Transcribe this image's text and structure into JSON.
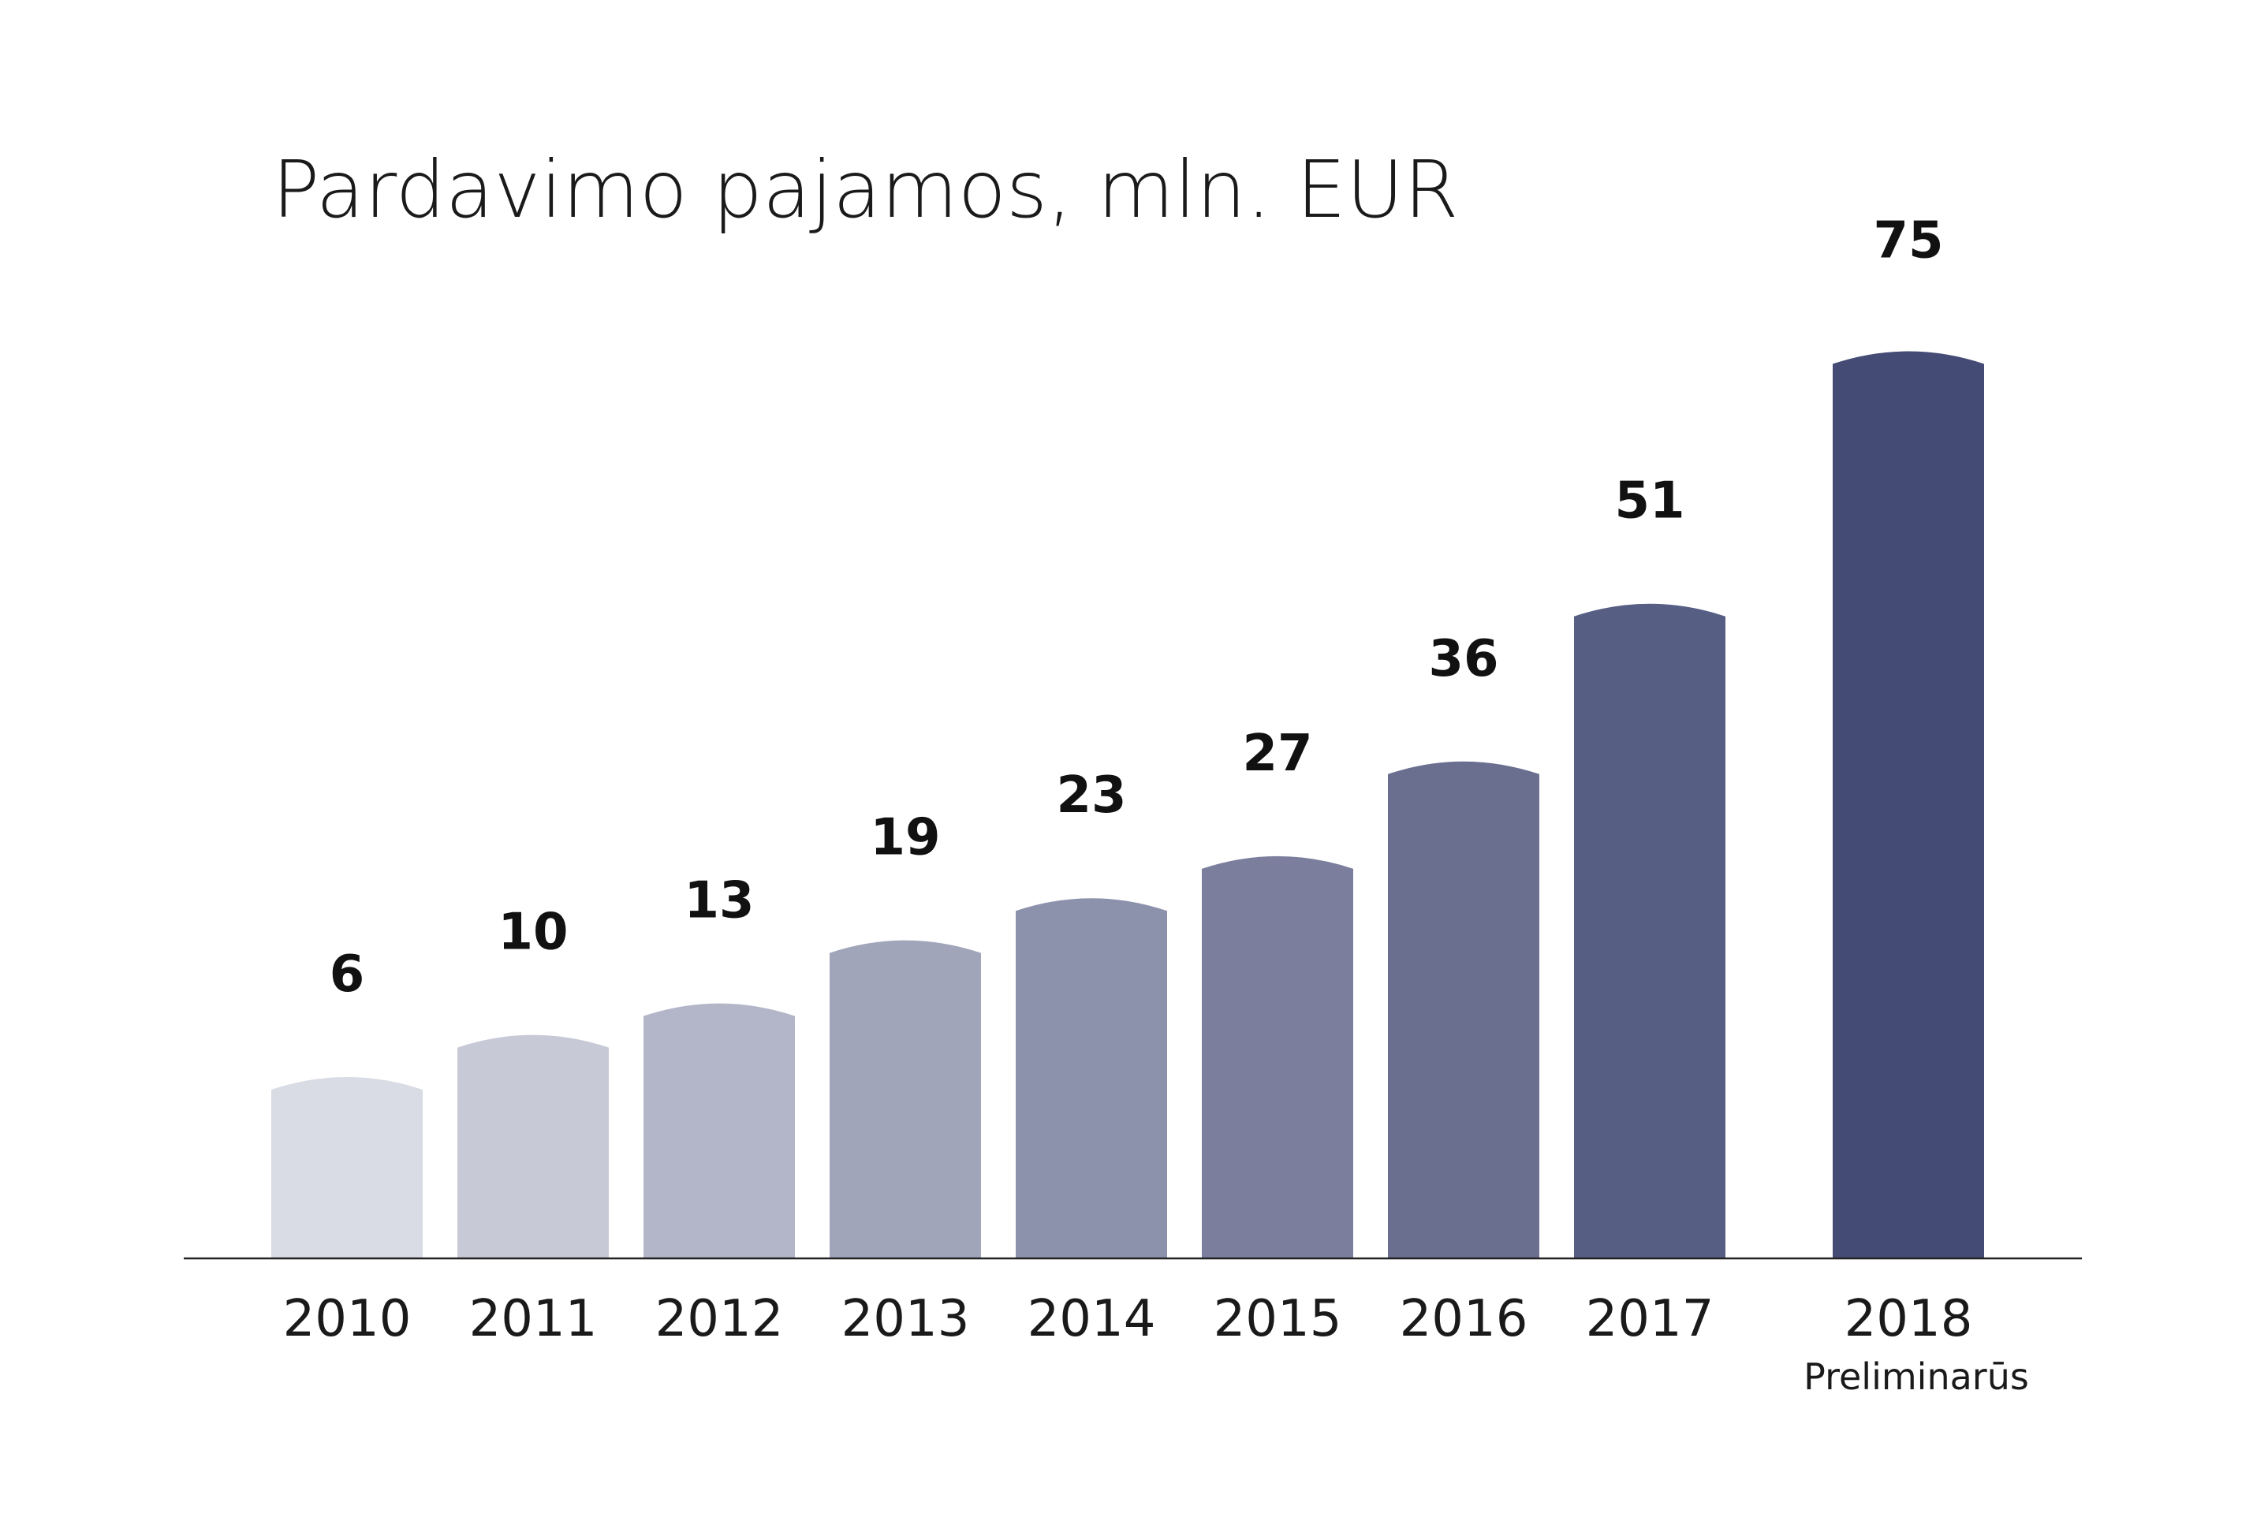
{
  "chart_data": {
    "type": "bar",
    "title": "Pardavimo pajamos, mln. EUR",
    "categories": [
      "2010",
      "2011",
      "2012",
      "2013",
      "2014",
      "2015",
      "2016",
      "2017",
      "2018"
    ],
    "category_notes": [
      "",
      "",
      "",
      "",
      "",
      "",
      "",
      "",
      "Preliminarūs"
    ],
    "values": [
      6,
      10,
      13,
      19,
      23,
      27,
      36,
      51,
      75
    ],
    "bar_colors": [
      "#d9dbe5",
      "#c7c9d7",
      "#b3b6c9",
      "#a0a5ba",
      "#8d92ac",
      "#7b7f9d",
      "#6a6f90",
      "#565e83",
      "#444b74"
    ],
    "axis_color": "#222222",
    "grid": false,
    "legend": "none"
  }
}
